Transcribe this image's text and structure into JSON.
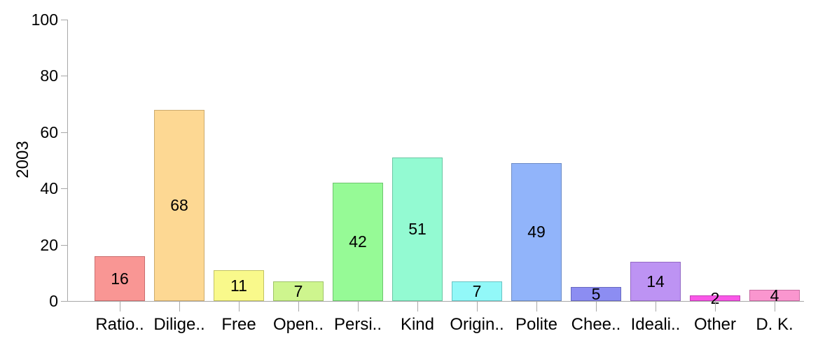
{
  "chart_data": {
    "type": "bar",
    "title": "",
    "xlabel": "",
    "ylabel": "2003",
    "ylim": [
      0,
      100
    ],
    "yticks": [
      0,
      20,
      40,
      60,
      80,
      100
    ],
    "grid": false,
    "legend_position": "none",
    "categories": [
      "Ratio..",
      "Dilige..",
      "Free",
      "Open..",
      "Persi..",
      "Kind",
      "Origin..",
      "Polite",
      "Chee..",
      "Ideali..",
      "Other",
      "D. K."
    ],
    "values": [
      16,
      68,
      11,
      7,
      42,
      51,
      7,
      49,
      5,
      14,
      2,
      4
    ],
    "bar_colors": [
      "#F99694",
      "#FDD893",
      "#F9F98B",
      "#CEF58E",
      "#96FA96",
      "#93FAD2",
      "#92F8F8",
      "#91B4FA",
      "#8C8DF2",
      "#BD93F3",
      "#F957E7",
      "#FA96CF"
    ],
    "bar_border_colors": [
      "#C96E6F",
      "#CCAB6E",
      "#C2C263",
      "#9FC468",
      "#6EC46E",
      "#6BC7A4",
      "#69C3C3",
      "#6E8DC6",
      "#6668BF",
      "#9369C4",
      "#C23EB5",
      "#C76BA2"
    ],
    "axis_color": "#a8a8a8",
    "text_color": "#000000"
  }
}
